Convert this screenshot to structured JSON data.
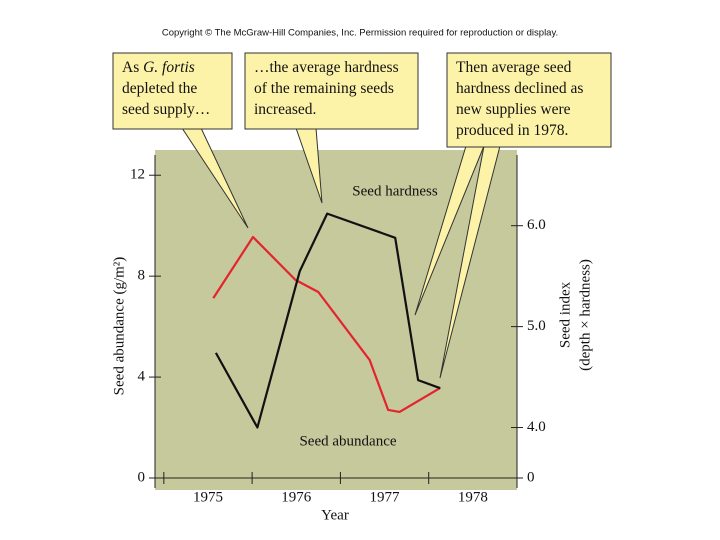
{
  "notice": "Copyright © The McGraw-Hill Companies, Inc. Permission required for reproduction or display.",
  "chart_data": {
    "type": "line",
    "x_label": "Year",
    "y_label": "Seed abundance (g/m²)",
    "y2_label": [
      "Seed index",
      "(depth × hardness)"
    ],
    "xlim": [
      1974.9,
      1979.0
    ],
    "xticks": [
      1975,
      1976,
      1977,
      1978
    ],
    "ylim": [
      0,
      13
    ],
    "yticks": [
      0,
      4,
      8,
      12
    ],
    "y2lim": [
      0,
      6.75
    ],
    "y2break": [
      0,
      3.5
    ],
    "y2ticks": [
      0,
      {
        "value": 4,
        "label": "4.0"
      },
      {
        "value": 5,
        "label": "5.0"
      },
      {
        "value": 6,
        "label": "6.0"
      }
    ],
    "background": "#c5c99c",
    "series": [
      {
        "name": "Seed abundance",
        "color": "#e3242f",
        "axis": "y",
        "x": [
          1975.56,
          1976.01,
          1976.49,
          1976.75,
          1977.33,
          1977.54,
          1977.67,
          1978.13
        ],
        "values": [
          7.13,
          9.55,
          7.85,
          7.37,
          4.68,
          2.7,
          2.62,
          3.57
        ]
      },
      {
        "name": "Seed hardness",
        "color": "#111111",
        "axis": "y2",
        "x": [
          1975.59,
          1976.06,
          1976.54,
          1976.85,
          1977.62,
          1977.88,
          1978.13
        ],
        "values": [
          4.74,
          4.0,
          5.55,
          6.12,
          5.88,
          4.47,
          4.39
        ]
      }
    ],
    "callouts": [
      {
        "lines": [
          [
            "As ",
            "G. fortis"
          ],
          [
            "depleted the"
          ],
          [
            "seed supply…"
          ]
        ]
      },
      {
        "lines": [
          [
            "…the average hardness"
          ],
          [
            "of the remaining seeds"
          ],
          [
            "increased."
          ]
        ]
      },
      {
        "lines": [
          [
            "Then average seed"
          ],
          [
            "hardness declined as"
          ],
          [
            "new supplies were"
          ],
          [
            "produced in 1978."
          ]
        ]
      }
    ]
  }
}
